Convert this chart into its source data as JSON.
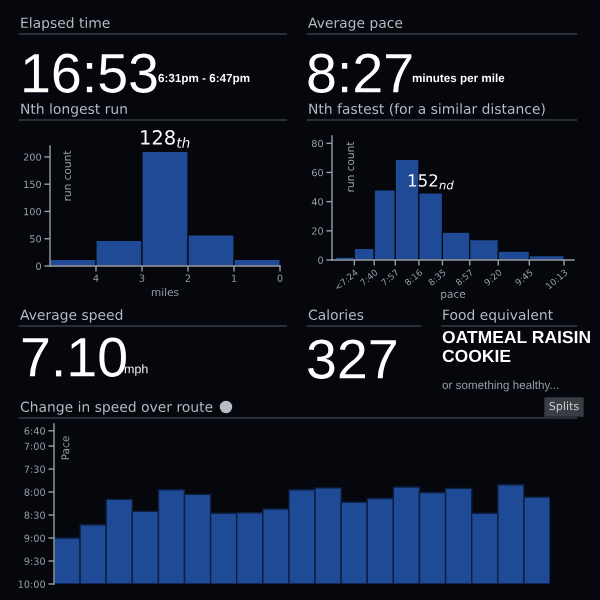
{
  "chart_data": [
    {
      "type": "other",
      "title": "Elapsed time",
      "annotations": [
        "16:53",
        "6:31pm - 6:47pm"
      ]
    },
    {
      "type": "other",
      "title": "Average pace",
      "annotations": [
        "8:27",
        "minutes per mile"
      ]
    },
    {
      "type": "histogram",
      "title": "Nth longest run",
      "xlabel": "miles",
      "ylabel": "run count",
      "bins": [
        5,
        4,
        3,
        2,
        1,
        0
      ],
      "values": [
        12,
        47,
        210,
        57,
        12
      ],
      "color": "#1f4a96",
      "xlim": [
        5,
        0
      ],
      "xticks": [
        4,
        3,
        2,
        1,
        0
      ],
      "ylim": [
        0,
        220
      ],
      "yticks": [
        0,
        50,
        100,
        150,
        200
      ],
      "grid": false,
      "annotations": [
        {
          "text": "128$_{th}$",
          "x": 2.5,
          "y": 210
        }
      ]
    },
    {
      "type": "histogram",
      "title": "Nth fastest (for a similar distance)",
      "xlabel": "pace",
      "ylabel": "run count",
      "bins": [
        7.151,
        7.4,
        7.667,
        7.95,
        8.267,
        8.583,
        8.95,
        9.333,
        9.75,
        10.217
      ],
      "values": [
        2,
        8,
        48,
        69,
        46,
        19,
        14,
        6,
        3
      ],
      "color": "#1f4a96",
      "xlim": [
        7.1,
        10.35
      ],
      "xticks": [
        {
          "value": 7.4,
          "label": "<7:24"
        },
        {
          "value": 7.667,
          "label": "7:40"
        },
        {
          "value": 7.95,
          "label": "7:57"
        },
        {
          "value": 8.267,
          "label": "8:16"
        },
        {
          "value": 8.583,
          "label": "8:35"
        },
        {
          "value": 8.95,
          "label": "8:57"
        },
        {
          "value": 9.333,
          "label": "9:20"
        },
        {
          "value": 9.75,
          "label": "9:45"
        },
        {
          "value": 10.217,
          "label": "10:13"
        }
      ],
      "ylim": [
        0,
        85
      ],
      "yticks": [
        0,
        20,
        40,
        60,
        80
      ],
      "grid": false,
      "annotations": [
        {
          "text": "152$_{nd}$",
          "x": 8.425,
          "y": 46
        }
      ]
    },
    {
      "type": "other",
      "title": "Average speed",
      "annotations": [
        "7.10",
        "mph"
      ]
    },
    {
      "type": "other",
      "title": "Calories",
      "annotations": [
        "327"
      ]
    },
    {
      "type": "other",
      "title": "Food equivalent",
      "annotations": [
        "OATMEAL RAISIN COOKIE",
        "or something healthy..."
      ]
    },
    {
      "type": "bar",
      "title": "Change in speed over route",
      "ylabel": "Pace",
      "categories": [
        null,
        null,
        null,
        null,
        null,
        null,
        null,
        null,
        null,
        null,
        null,
        null,
        null,
        null,
        null,
        null,
        null,
        null,
        null
      ],
      "values": [
        -1.0,
        -1.29,
        -1.84,
        -1.58,
        -2.05,
        -1.95,
        -1.54,
        -1.55,
        -1.63,
        -2.05,
        -2.09,
        -1.78,
        -1.86,
        -2.11,
        -1.99,
        -2.08,
        -1.54,
        -2.16,
        -1.89
      ],
      "color": "#1f4a96",
      "base": [
        10,
        10,
        10,
        10,
        10,
        10,
        10,
        10,
        10,
        10,
        10,
        10,
        10,
        10,
        10,
        10,
        10,
        10,
        10
      ],
      "ylim": [
        10,
        6.52
      ],
      "yticks": [
        {
          "value": 6.667,
          "label": "6:40"
        },
        {
          "value": 7,
          "label": "7:00"
        },
        {
          "value": 7.5,
          "label": "7:30"
        },
        {
          "value": 8,
          "label": "8:00"
        },
        {
          "value": 8.5,
          "label": "8:30"
        },
        {
          "value": 9,
          "label": "9:00"
        },
        {
          "value": 9.5,
          "label": "9:30"
        },
        {
          "value": 10,
          "label": "10:00"
        }
      ],
      "grid": false,
      "tick_labels": "y",
      "annotations": [
        "Splits"
      ]
    }
  ]
}
